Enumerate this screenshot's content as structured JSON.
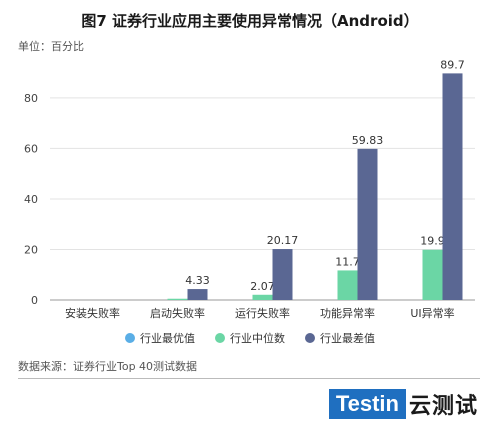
{
  "title": "图7 证券行业应用主要使用异常情况（Android）",
  "unit_label": "单位：百分比",
  "source": "数据来源：证券行业Top 40测试数据",
  "brand": {
    "logo_text": "Testin",
    "suffix": "云测试"
  },
  "colors": {
    "best": "#5aaee6",
    "median": "#6bd6a5",
    "worst": "#5a6793"
  },
  "chart_data": {
    "type": "bar",
    "categories": [
      "安装失败率",
      "启动失败率",
      "运行失败率",
      "功能异常率",
      "UI异常率"
    ],
    "series": [
      {
        "name": "行业最优值",
        "values": [
          0,
          0,
          0,
          0,
          0
        ]
      },
      {
        "name": "行业中位数",
        "values": [
          0,
          0.5,
          2.07,
          11.7,
          19.9
        ]
      },
      {
        "name": "行业最差值",
        "values": [
          0,
          4.33,
          20.17,
          59.83,
          89.7
        ]
      }
    ],
    "data_labels": [
      [
        "",
        "",
        "",
        "",
        ""
      ],
      [
        "",
        "",
        "2.07",
        "11.7",
        "19.9"
      ],
      [
        "",
        "4.33",
        "20.17",
        "59.83",
        "89.7"
      ]
    ],
    "yticks": [
      "0",
      "20",
      "40",
      "60",
      "80"
    ],
    "ylim": [
      0,
      95
    ],
    "grid": "horizontal",
    "legend_position": "bottom"
  }
}
